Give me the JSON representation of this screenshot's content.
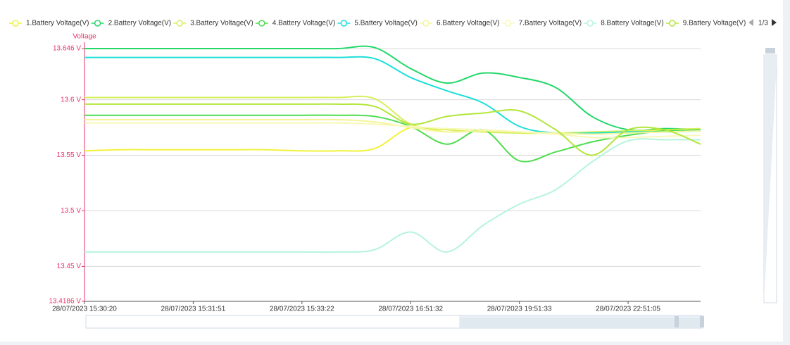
{
  "chart_data": {
    "type": "line",
    "y_axis_name": "Voltage",
    "legend_page": "1/3",
    "categories": [
      "28/07/2023 15:30:20",
      null,
      null,
      "28/07/2023 15:31:51",
      null,
      null,
      "28/07/2023 15:33:22",
      null,
      null,
      "28/07/2023 16:51:32",
      null,
      null,
      "28/07/2023 19:51:33",
      null,
      null,
      "28/07/2023 22:51:05",
      null,
      null
    ],
    "ylim": [
      13.4186,
      13.646
    ],
    "yticks": [
      {
        "value": 13.4186,
        "label": "13.4186 V"
      },
      {
        "value": 13.45,
        "label": "13.45 V"
      },
      {
        "value": 13.5,
        "label": "13.5 V"
      },
      {
        "value": 13.55,
        "label": "13.55 V"
      },
      {
        "value": 13.6,
        "label": "13.6 V"
      },
      {
        "value": 13.646,
        "label": "13.646 V"
      }
    ],
    "grid": true,
    "series": [
      {
        "name": "1.Battery Voltage(V)",
        "color": "#f2f23a",
        "values": [
          13.554,
          13.555,
          13.555,
          13.555,
          13.555,
          13.555,
          13.554,
          13.554,
          13.556,
          13.575,
          13.571,
          13.572,
          13.57,
          13.57,
          13.57,
          13.571,
          13.572,
          13.573
        ]
      },
      {
        "name": "2.Battery Voltage(V)",
        "color": "#22d86a",
        "values": [
          13.646,
          13.646,
          13.646,
          13.646,
          13.646,
          13.646,
          13.646,
          13.646,
          13.647,
          13.628,
          13.615,
          13.624,
          13.62,
          13.611,
          13.585,
          13.573,
          13.574,
          13.573
        ]
      },
      {
        "name": "3.Battery Voltage(V)",
        "color": "#d6ef5a",
        "values": [
          13.602,
          13.602,
          13.602,
          13.602,
          13.602,
          13.602,
          13.602,
          13.602,
          13.601,
          13.578,
          13.573,
          13.571,
          13.57,
          13.57,
          13.571,
          13.572,
          13.573,
          13.574
        ]
      },
      {
        "name": "4.Battery Voltage(V)",
        "color": "#4fdc4f",
        "values": [
          13.586,
          13.586,
          13.586,
          13.586,
          13.586,
          13.586,
          13.586,
          13.586,
          13.585,
          13.576,
          13.56,
          13.573,
          13.545,
          13.553,
          13.562,
          13.568,
          13.572,
          13.572
        ]
      },
      {
        "name": "5.Battery Voltage(V)",
        "color": "#1ddfd9",
        "values": [
          13.638,
          13.638,
          13.638,
          13.638,
          13.638,
          13.638,
          13.638,
          13.638,
          13.637,
          13.62,
          13.608,
          13.597,
          13.576,
          13.57,
          13.57,
          13.571,
          13.571,
          13.572
        ]
      },
      {
        "name": "6.Battery Voltage(V)",
        "color": "#f4f59a",
        "values": [
          13.582,
          13.582,
          13.582,
          13.582,
          13.582,
          13.582,
          13.582,
          13.582,
          13.58,
          13.575,
          13.571,
          13.572,
          13.571,
          13.57,
          13.569,
          13.57,
          13.571,
          13.572
        ]
      },
      {
        "name": "7.Battery Voltage(V)",
        "color": "#f8f8b8",
        "values": [
          13.579,
          13.579,
          13.579,
          13.579,
          13.579,
          13.579,
          13.579,
          13.579,
          13.578,
          13.576,
          13.574,
          13.573,
          13.571,
          13.569,
          13.566,
          13.566,
          13.567,
          13.568
        ]
      },
      {
        "name": "8.Battery Voltage(V)",
        "color": "#b6f4dc",
        "values": [
          13.463,
          13.463,
          13.463,
          13.463,
          13.463,
          13.463,
          13.463,
          13.463,
          13.465,
          13.481,
          13.463,
          13.487,
          13.506,
          13.519,
          13.544,
          13.563,
          13.564,
          13.564
        ]
      },
      {
        "name": "9.Battery Voltage(V)",
        "color": "#b2e63a",
        "values": [
          13.596,
          13.596,
          13.596,
          13.596,
          13.596,
          13.596,
          13.596,
          13.596,
          13.594,
          13.578,
          13.585,
          13.588,
          13.59,
          13.573,
          13.55,
          13.573,
          13.573,
          13.56
        ]
      }
    ]
  }
}
